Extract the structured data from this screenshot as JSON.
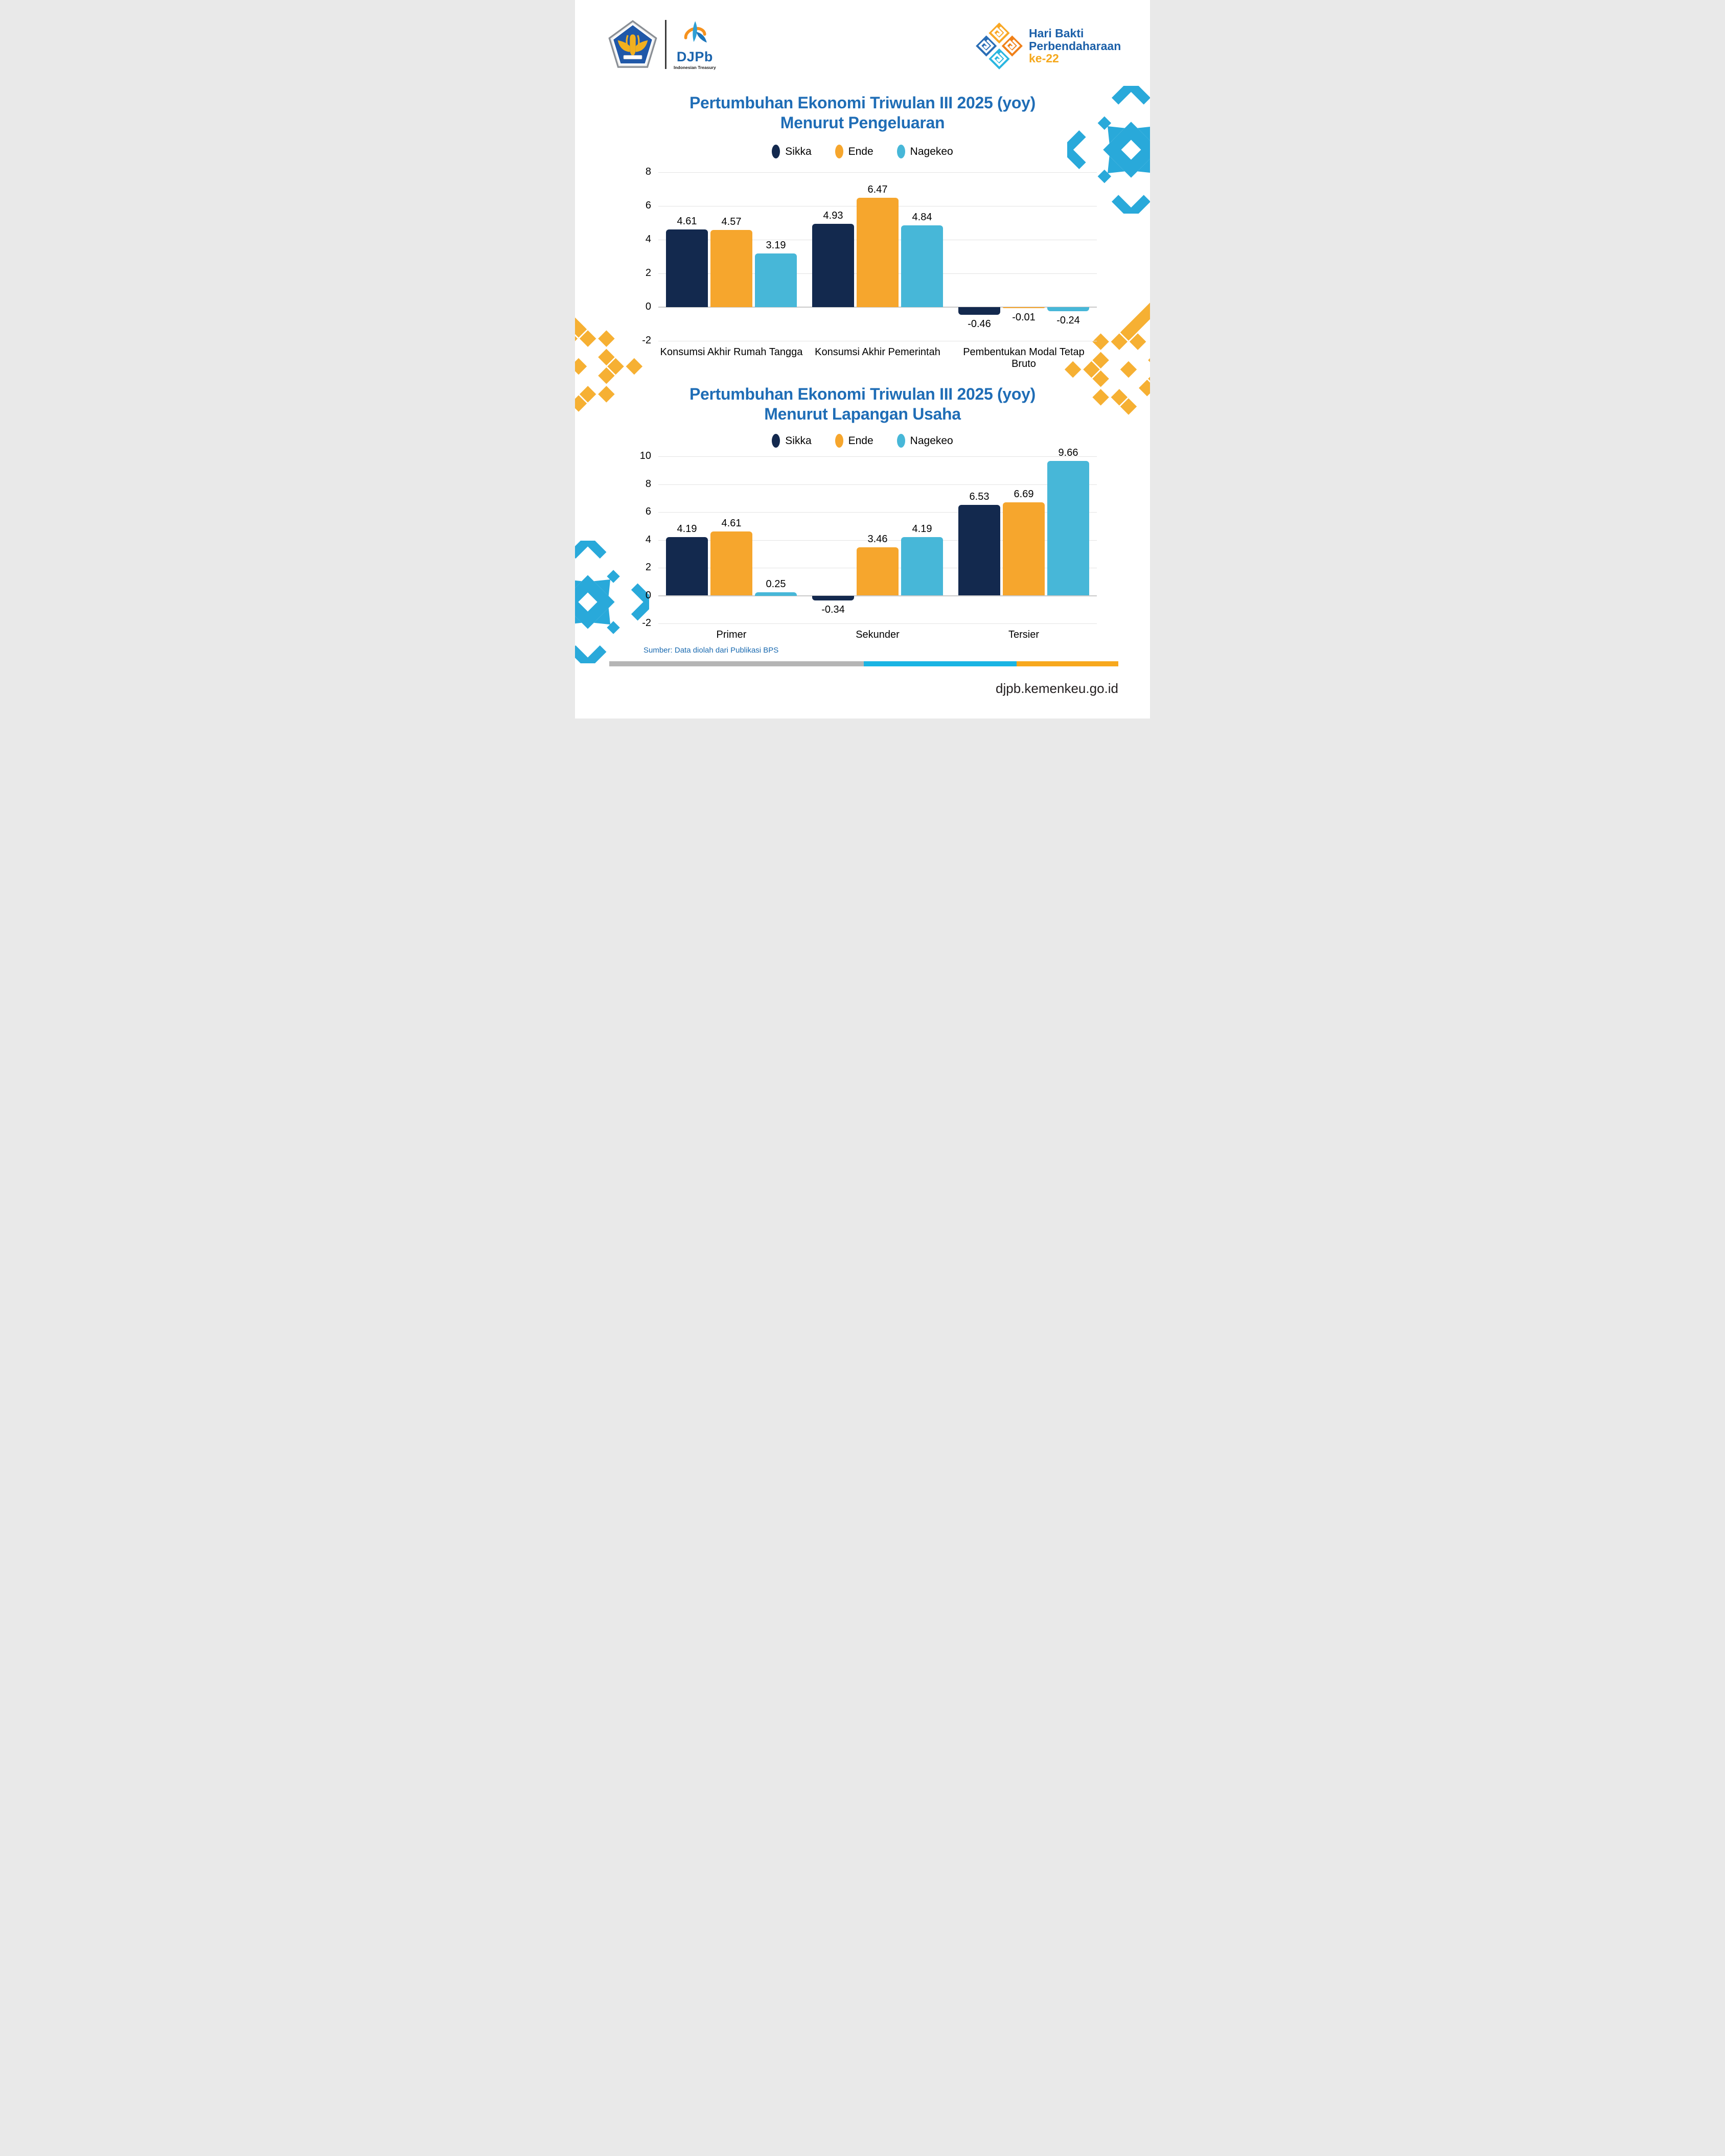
{
  "header": {
    "djpb_wordmark": "DJPb",
    "djpb_tagline": "Indonesian Treasury",
    "event": {
      "line1": "Hari Bakti",
      "line2": "Perbendaharaan",
      "line3": "ke-22"
    }
  },
  "legend": {
    "items": [
      {
        "label": "Sikka",
        "color": "#13294e"
      },
      {
        "label": "Ende",
        "color": "#f6a62d"
      },
      {
        "label": "Nagekeo",
        "color": "#47b7d8"
      }
    ]
  },
  "chart_data": [
    {
      "type": "bar",
      "title": "Pertumbuhan Ekonomi Triwulan III 2025 (yoy) Menurut Pengeluaran",
      "title_lines": [
        "Pertumbuhan Ekonomi Triwulan III 2025 (yoy)",
        "Menurut Pengeluaran"
      ],
      "categories": [
        "Konsumsi Akhir Rumah Tangga",
        "Konsumsi Akhir Pemerintah",
        "Pembentukan Modal Tetap Bruto"
      ],
      "series": [
        {
          "name": "Sikka",
          "color": "#13294e",
          "values": [
            4.61,
            4.93,
            -0.46
          ]
        },
        {
          "name": "Ende",
          "color": "#f6a62d",
          "values": [
            4.57,
            6.47,
            -0.01
          ]
        },
        {
          "name": "Nagekeo",
          "color": "#47b7d8",
          "values": [
            3.19,
            4.84,
            -0.24
          ]
        }
      ],
      "ylim": [
        -2,
        8
      ],
      "yticks": [
        8,
        6,
        4,
        2,
        0,
        -2
      ],
      "grid": true,
      "legend_position": "top",
      "value_labels": true
    },
    {
      "type": "bar",
      "title": "Pertumbuhan Ekonomi Triwulan III 2025 (yoy) Menurut Lapangan Usaha",
      "title_lines": [
        "Pertumbuhan Ekonomi Triwulan III 2025 (yoy)",
        "Menurut Lapangan Usaha"
      ],
      "categories": [
        "Primer",
        "Sekunder",
        "Tersier"
      ],
      "series": [
        {
          "name": "Sikka",
          "color": "#13294e",
          "values": [
            4.19,
            -0.34,
            6.53
          ]
        },
        {
          "name": "Ende",
          "color": "#f6a62d",
          "values": [
            4.61,
            3.46,
            6.69
          ]
        },
        {
          "name": "Nagekeo",
          "color": "#47b7d8",
          "values": [
            0.25,
            4.19,
            9.66
          ]
        }
      ],
      "ylim": [
        -2,
        10
      ],
      "yticks": [
        10,
        8,
        6,
        4,
        2,
        0,
        -2
      ],
      "grid": true,
      "legend_position": "top",
      "value_labels": true
    }
  ],
  "footer": {
    "source_note": "Sumber: Data diolah dari Publikasi BPS",
    "website": "djpb.kemenkeu.go.id",
    "bar_segments": [
      {
        "color": "#b5b5b5",
        "fraction": 0.5
      },
      {
        "color": "#1ab4e3",
        "fraction": 0.3
      },
      {
        "color": "#f7a81d",
        "fraction": 0.2
      }
    ]
  },
  "colors": {
    "title": "#1f6db6",
    "grid": "#e3e3e3",
    "source_note": "#1a6ab0",
    "ornament_cyan": "#29a9da",
    "ornament_yellow": "#f6b033"
  }
}
